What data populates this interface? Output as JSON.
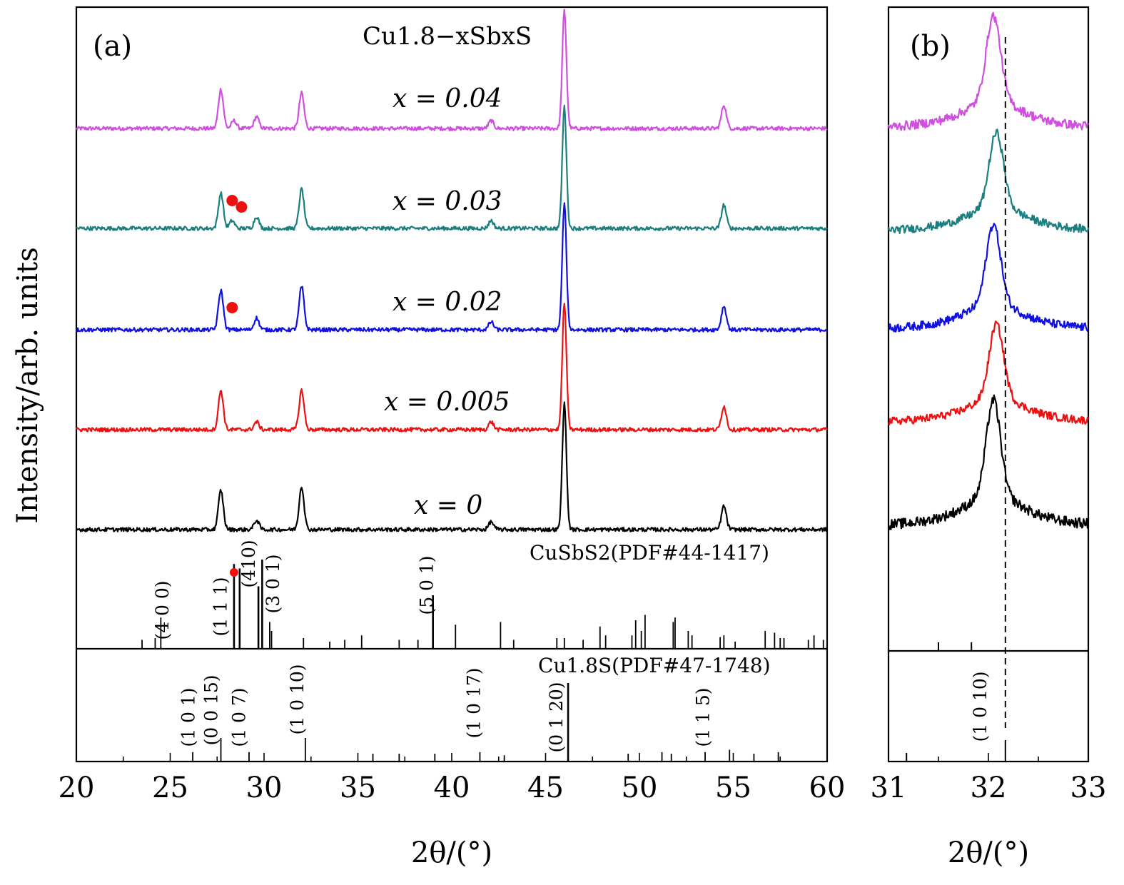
{
  "figure": {
    "panel_a_label": "(a)",
    "panel_b_label": "(b)",
    "compound_label": "Cu1.8−xSbxS",
    "y_axis_title": "Intensity/arb. units",
    "x_axis_title_a": "2θ/(°)",
    "x_axis_title_b": "2θ/(°)"
  },
  "chart_data": [
    {
      "panel": "a",
      "type": "line",
      "xlim": [
        20,
        60
      ],
      "xticks": [
        20,
        25,
        30,
        35,
        40,
        45,
        50,
        55,
        60
      ],
      "xlabel": "2θ/(°)",
      "ylabel": "Intensity/arb. units",
      "series": [
        {
          "name": "x = 0.04",
          "color": "#d04fe0",
          "baseline": 0.8,
          "peaks": [
            {
              "x": 27.7,
              "h": 0.5
            },
            {
              "x": 28.4,
              "h": 0.1
            },
            {
              "x": 29.6,
              "h": 0.15
            },
            {
              "x": 32.0,
              "h": 0.45
            },
            {
              "x": 42.1,
              "h": 0.1
            },
            {
              "x": 46.0,
              "h": 1.5
            },
            {
              "x": 54.5,
              "h": 0.3
            }
          ]
        },
        {
          "name": "x = 0.03",
          "color": "#1b7f80",
          "baseline": 0.65,
          "peaks": [
            {
              "x": 27.7,
              "h": 0.45
            },
            {
              "x": 28.3,
              "h": 0.1
            },
            {
              "x": 29.6,
              "h": 0.15
            },
            {
              "x": 32.0,
              "h": 0.5
            },
            {
              "x": 42.1,
              "h": 0.1
            },
            {
              "x": 46.0,
              "h": 1.55
            },
            {
              "x": 54.5,
              "h": 0.3
            }
          ]
        },
        {
          "name": "x = 0.02",
          "color": "#1010e0",
          "baseline": 0.5,
          "peaks": [
            {
              "x": 27.7,
              "h": 0.5
            },
            {
              "x": 29.6,
              "h": 0.15
            },
            {
              "x": 32.0,
              "h": 0.55
            },
            {
              "x": 42.1,
              "h": 0.1
            },
            {
              "x": 46.0,
              "h": 1.6
            },
            {
              "x": 54.5,
              "h": 0.3
            }
          ]
        },
        {
          "name": "x = 0.005",
          "color": "#ee1010",
          "baseline": 0.35,
          "peaks": [
            {
              "x": 27.7,
              "h": 0.5
            },
            {
              "x": 29.6,
              "h": 0.1
            },
            {
              "x": 32.0,
              "h": 0.5
            },
            {
              "x": 42.1,
              "h": 0.1
            },
            {
              "x": 46.0,
              "h": 1.6
            },
            {
              "x": 54.5,
              "h": 0.3
            }
          ]
        },
        {
          "name": "x = 0",
          "color": "#000000",
          "baseline": 0.2,
          "peaks": [
            {
              "x": 27.7,
              "h": 0.5
            },
            {
              "x": 29.6,
              "h": 0.12
            },
            {
              "x": 32.0,
              "h": 0.55
            },
            {
              "x": 42.1,
              "h": 0.1
            },
            {
              "x": 46.0,
              "h": 1.6
            },
            {
              "x": 54.5,
              "h": 0.3
            }
          ]
        }
      ],
      "impurity_markers": [
        {
          "series": "x = 0.03",
          "x": [
            28.3,
            28.8
          ]
        },
        {
          "series": "x = 0.02",
          "x": [
            28.3
          ]
        },
        {
          "series": "CuSbS2(PDF#44-1417)",
          "x": [
            28.4
          ]
        }
      ],
      "reference_patterns": [
        {
          "name": "CuSbS2(PDF#44-1417)",
          "sticks": [
            [
              23.5,
              0.1
            ],
            [
              24.2,
              0.12
            ],
            [
              24.5,
              0.35
            ],
            [
              28.4,
              0.95
            ],
            [
              28.7,
              0.9
            ],
            [
              29.7,
              0.7
            ],
            [
              29.9,
              1.0
            ],
            [
              30.3,
              0.3
            ],
            [
              30.4,
              0.2
            ],
            [
              32.1,
              0.12
            ],
            [
              33.5,
              0.08
            ],
            [
              34.3,
              0.1
            ],
            [
              35.2,
              0.15
            ],
            [
              37.2,
              0.1
            ],
            [
              38.2,
              0.1
            ],
            [
              39.0,
              0.6
            ],
            [
              40.2,
              0.27
            ],
            [
              42.6,
              0.3
            ],
            [
              43.3,
              0.1
            ],
            [
              45.6,
              0.12
            ],
            [
              46.0,
              0.12
            ],
            [
              47.0,
              0.1
            ],
            [
              47.9,
              0.25
            ],
            [
              48.2,
              0.15
            ],
            [
              49.6,
              0.15
            ],
            [
              49.8,
              0.32
            ],
            [
              50.1,
              0.2
            ],
            [
              50.3,
              0.38
            ],
            [
              51.8,
              0.3
            ],
            [
              51.9,
              0.35
            ],
            [
              52.6,
              0.2
            ],
            [
              52.8,
              0.15
            ],
            [
              54.3,
              0.13
            ],
            [
              54.5,
              0.15
            ],
            [
              55.1,
              0.08
            ],
            [
              56.7,
              0.2
            ],
            [
              57.2,
              0.18
            ],
            [
              57.5,
              0.12
            ],
            [
              57.7,
              0.12
            ],
            [
              59.0,
              0.1
            ],
            [
              59.3,
              0.15
            ],
            [
              59.8,
              0.1
            ]
          ],
          "labels": [
            "(4 0 0)",
            "(1 1 1)",
            "(410)",
            "(3 0 1)",
            "(5 0 1)"
          ]
        },
        {
          "name": "Cu1.8S(PDF#47-1748)",
          "sticks": [
            [
              26.2,
              0.12
            ],
            [
              27.7,
              0.3
            ],
            [
              29.2,
              0.12
            ],
            [
              32.2,
              0.3
            ],
            [
              35.8,
              0.1
            ],
            [
              37.2,
              0.1
            ],
            [
              39.1,
              0.1
            ],
            [
              41.5,
              0.12
            ],
            [
              42.8,
              0.08
            ],
            [
              46.2,
              1.0
            ],
            [
              49.4,
              0.1
            ],
            [
              51.2,
              0.12
            ],
            [
              51.7,
              0.1
            ],
            [
              53.5,
              0.12
            ],
            [
              54.8,
              0.15
            ],
            [
              56.1,
              0.1
            ],
            [
              57.4,
              0.12
            ]
          ],
          "labels": [
            "(1 0 1)",
            "(0 0 15)",
            "(1 0 7)",
            "(1 0 10)",
            "(1 0 17)",
            "(0 1 20)",
            "(1 1 5)"
          ]
        }
      ]
    },
    {
      "panel": "b",
      "type": "line",
      "xlim": [
        31,
        33
      ],
      "xticks": [
        31,
        32,
        33
      ],
      "xlabel": "2θ/(°)",
      "peak_center_x": 32.05,
      "reference_line_x": 32.17,
      "reference_label": "(1 0 10)",
      "series_colors": [
        "#d04fe0",
        "#1b7f80",
        "#1010e0",
        "#ee1010",
        "#000000"
      ],
      "cusbs2_sticks": [
        31.5,
        31.83
      ],
      "cu18s_sticks": [
        31.18,
        32.17
      ]
    }
  ]
}
